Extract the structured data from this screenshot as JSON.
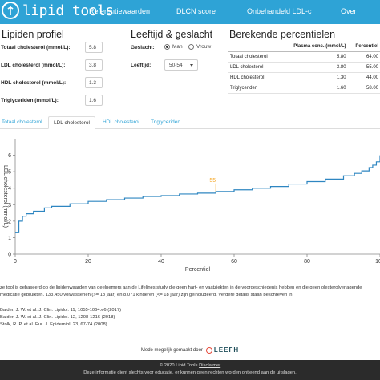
{
  "nav": {
    "brand": "lipid tools",
    "items": [
      "Referentiewaarden",
      "DLCN score",
      "Onbehandeld LDL-c",
      "Over"
    ]
  },
  "profile": {
    "title": "Lipiden profiel",
    "fields": [
      {
        "label": "Totaal cholesterol (mmol/L):",
        "value": "5.8"
      },
      {
        "label": "LDL cholesterol (mmol/L):",
        "value": "3.8"
      },
      {
        "label": "HDL cholesterol (mmol/L):",
        "value": "1.3"
      },
      {
        "label": "Triglyceriden (mmol/L):",
        "value": "1.6"
      }
    ]
  },
  "demographics": {
    "title": "Leeftijd & geslacht",
    "sex_label": "Geslacht:",
    "sex_options": [
      {
        "label": "Man",
        "selected": true
      },
      {
        "label": "Vrouw",
        "selected": false
      }
    ],
    "age_label": "Leeftijd:",
    "age_value": "50-54"
  },
  "percentiles": {
    "title": "Berekende percentielen",
    "headers": [
      "",
      "Plasma conc. (mmol/L)",
      "Percentiel"
    ],
    "rows": [
      [
        "Totaal cholesterol",
        "5.80",
        "64.00"
      ],
      [
        "LDL cholesterol",
        "3.80",
        "55.00"
      ],
      [
        "HDL cholesterol",
        "1.30",
        "44.00"
      ],
      [
        "Triglyceriden",
        "1.60",
        "58.00"
      ]
    ]
  },
  "tabs": [
    "Totaal cholesterol",
    "LDL cholesterol",
    "HDL cholesterol",
    "Triglyceriden"
  ],
  "active_tab": 1,
  "chart_data": {
    "type": "line",
    "xlabel": "Percentiel",
    "ylabel": "LDL cholesterol (mmol/L)",
    "xlim": [
      0,
      100
    ],
    "ylim": [
      0,
      7
    ],
    "xticks": [
      0,
      20,
      40,
      60,
      80,
      100
    ],
    "yticks": [
      0,
      1,
      2,
      3,
      4,
      5,
      6
    ],
    "x": [
      0,
      1,
      2,
      3,
      5,
      8,
      10,
      15,
      20,
      25,
      30,
      35,
      40,
      45,
      50,
      55,
      60,
      65,
      70,
      75,
      80,
      85,
      90,
      93,
      95,
      97,
      98,
      99,
      100
    ],
    "y": [
      1.3,
      2.0,
      2.3,
      2.45,
      2.6,
      2.8,
      2.9,
      3.05,
      3.2,
      3.3,
      3.4,
      3.5,
      3.55,
      3.65,
      3.7,
      3.8,
      3.9,
      4.0,
      4.1,
      4.25,
      4.4,
      4.55,
      4.75,
      4.9,
      5.05,
      5.25,
      5.4,
      5.6,
      6.0
    ],
    "marker": {
      "x": 55,
      "y": 3.8,
      "label": "55"
    },
    "line_color": "#2e86c1",
    "marker_color": "#f5a623",
    "grid": false
  },
  "footnote": "ze tool is gebaseerd op de lipidenwaarden van deelnemers aan de Lifelines study die geen hart- en vaatziekten in de voorgeschiedenis hebben en die geen olesterolverlagende medicatie gebruikten. 133.450 volwassenen (>= 18 jaar) en 8.071 kinderen (<= 18 jaar) zijn geincludeerd. Verdere details staan beschreven in:",
  "references": [
    "Balder, J. W. et al. J. Clin. Lipidol. 11, 1055-1064.e6 (2017)",
    "Balder, J. W. et al. J. Clin. Lipidol. 12, 1208-1216 (2018)",
    "Stolk, R. P. et al. Eur. J. Epidemiol. 23, 67-74 (2008)"
  ],
  "made_by": "Mede mogelijk gemaakt door",
  "made_by_logo": "LEEFH",
  "footer": {
    "copyright": "© 2020 Lipid Tools",
    "disclaimer_link": "Disclaimer",
    "note": "Deze informatie dient slechts voor educatie, er kunnen geen rechten worden ontleend aan de uitslagen."
  }
}
